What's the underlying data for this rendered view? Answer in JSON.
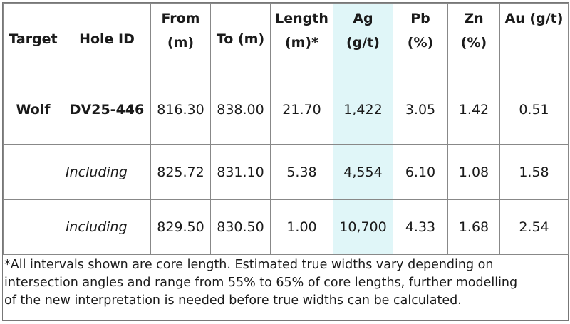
{
  "table": {
    "header": [
      "Target",
      "Hole ID",
      "From (m)",
      "To (m)",
      "Length (m)*",
      "Ag (g/t)",
      "Pb (%)",
      "Zn (%)",
      "Au (g/t)"
    ],
    "rows": [
      [
        "Wolf",
        "DV25-446",
        "816.30",
        "838.00",
        "21.70",
        "1,422",
        "3.05",
        "1.42",
        "0.51"
      ],
      [
        "",
        "Including",
        "825.72",
        "831.10",
        "5.38",
        "4,554",
        "6.10",
        "1.08",
        "1.58"
      ],
      [
        "",
        "including",
        "829.50",
        "830.50",
        "1.00",
        "10,700",
        "4.33",
        "1.68",
        "2.54"
      ]
    ]
  },
  "footnote": [
    "*All intervals shown are core length. Estimated true widths vary depending on",
    "intersection angles and range from 55% to 65% of core lengths, further modelling",
    "of the new interpretation is needed before true widths can be calculated."
  ]
}
